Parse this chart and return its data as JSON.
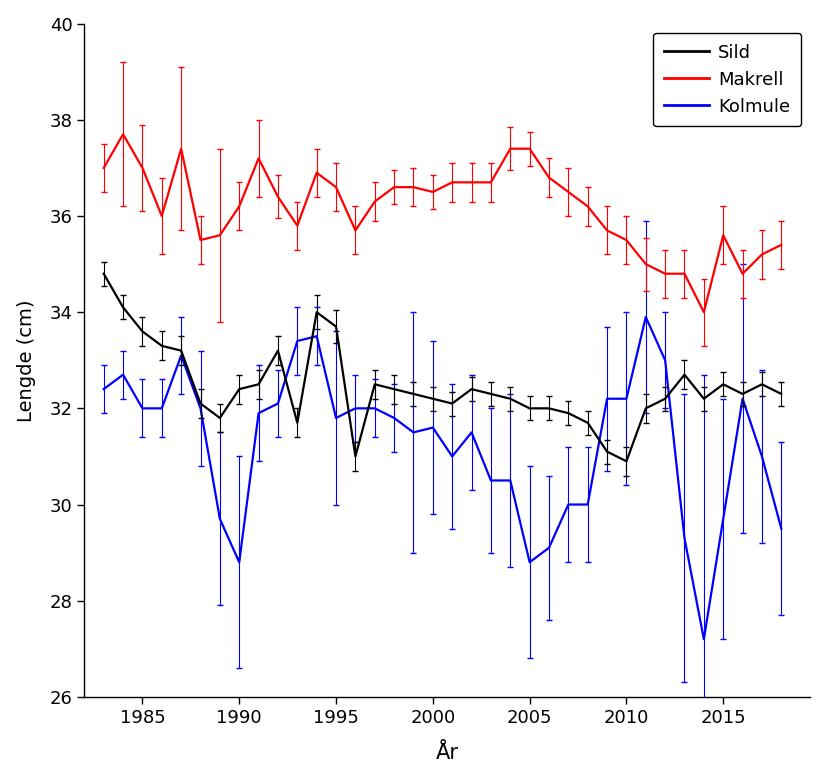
{
  "xlabel": "År",
  "ylabel": "Lengde (cm)",
  "ylim": [
    26,
    40
  ],
  "yticks": [
    26,
    28,
    30,
    32,
    34,
    36,
    38,
    40
  ],
  "xticks": [
    1985,
    1990,
    1995,
    2000,
    2005,
    2010,
    2015
  ],
  "xlim": [
    1982.0,
    2019.5
  ],
  "legend_labels": [
    "Sild",
    "Makrell",
    "Kolmule"
  ],
  "legend_colors": [
    "black",
    "red",
    "blue"
  ],
  "sild": {
    "years": [
      1983,
      1984,
      1985,
      1986,
      1987,
      1988,
      1989,
      1990,
      1991,
      1992,
      1993,
      1994,
      1995,
      1996,
      1997,
      1998,
      1999,
      2000,
      2001,
      2002,
      2003,
      2004,
      2005,
      2006,
      2007,
      2008,
      2009,
      2010,
      2011,
      2012,
      2013,
      2014,
      2015,
      2016,
      2017,
      2018
    ],
    "values": [
      34.8,
      34.1,
      33.6,
      33.3,
      33.2,
      32.1,
      31.8,
      32.4,
      32.5,
      33.2,
      31.7,
      34.0,
      33.7,
      31.0,
      32.5,
      32.4,
      32.3,
      32.2,
      32.1,
      32.4,
      32.3,
      32.2,
      32.0,
      32.0,
      31.9,
      31.7,
      31.1,
      30.9,
      32.0,
      32.2,
      32.7,
      32.2,
      32.5,
      32.3,
      32.5,
      32.3
    ],
    "yerr": [
      0.25,
      0.25,
      0.3,
      0.3,
      0.3,
      0.3,
      0.3,
      0.3,
      0.3,
      0.3,
      0.3,
      0.35,
      0.35,
      0.3,
      0.3,
      0.3,
      0.25,
      0.25,
      0.25,
      0.25,
      0.25,
      0.25,
      0.25,
      0.25,
      0.25,
      0.25,
      0.25,
      0.3,
      0.3,
      0.25,
      0.3,
      0.25,
      0.25,
      0.25,
      0.25,
      0.25
    ],
    "color": "black"
  },
  "makrell": {
    "years": [
      1983,
      1984,
      1985,
      1986,
      1987,
      1988,
      1989,
      1990,
      1991,
      1992,
      1993,
      1994,
      1995,
      1996,
      1997,
      1998,
      1999,
      2000,
      2001,
      2002,
      2003,
      2004,
      2005,
      2006,
      2007,
      2008,
      2009,
      2010,
      2011,
      2012,
      2013,
      2014,
      2015,
      2016,
      2017,
      2018
    ],
    "values": [
      37.0,
      37.7,
      37.0,
      36.0,
      37.4,
      35.5,
      35.6,
      36.2,
      37.2,
      36.4,
      35.8,
      36.9,
      36.6,
      35.7,
      36.3,
      36.6,
      36.6,
      36.5,
      36.7,
      36.7,
      36.7,
      37.4,
      37.4,
      36.8,
      36.5,
      36.2,
      35.7,
      35.5,
      35.0,
      34.8,
      34.8,
      34.0,
      35.6,
      34.8,
      35.2,
      35.4
    ],
    "yerr": [
      0.5,
      1.5,
      0.9,
      0.8,
      1.7,
      0.5,
      1.8,
      0.5,
      0.8,
      0.45,
      0.5,
      0.5,
      0.5,
      0.5,
      0.4,
      0.35,
      0.4,
      0.35,
      0.4,
      0.4,
      0.4,
      0.45,
      0.35,
      0.4,
      0.5,
      0.4,
      0.5,
      0.5,
      0.55,
      0.5,
      0.5,
      0.7,
      0.6,
      0.5,
      0.5,
      0.5
    ],
    "color": "red"
  },
  "kolmule": {
    "years": [
      1983,
      1984,
      1985,
      1986,
      1987,
      1988,
      1989,
      1990,
      1991,
      1992,
      1993,
      1994,
      1995,
      1996,
      1997,
      1998,
      1999,
      2000,
      2001,
      2002,
      2003,
      2004,
      2005,
      2006,
      2007,
      2008,
      2009,
      2010,
      2011,
      2012,
      2013,
      2014,
      2015,
      2016,
      2017,
      2018
    ],
    "values": [
      32.4,
      32.7,
      32.0,
      32.0,
      33.1,
      32.0,
      29.7,
      28.8,
      31.9,
      32.1,
      33.4,
      33.5,
      31.8,
      32.0,
      32.0,
      31.8,
      31.5,
      31.6,
      31.0,
      31.5,
      30.5,
      30.5,
      28.8,
      29.1,
      30.0,
      30.0,
      32.2,
      32.2,
      33.9,
      33.0,
      29.3,
      27.2,
      29.7,
      32.2,
      31.0,
      29.5
    ],
    "yerr": [
      0.5,
      0.5,
      0.6,
      0.6,
      0.8,
      1.2,
      1.8,
      2.2,
      1.0,
      0.7,
      0.7,
      0.6,
      1.8,
      0.7,
      0.6,
      0.7,
      2.5,
      1.8,
      1.5,
      1.2,
      1.5,
      1.8,
      2.0,
      1.5,
      1.2,
      1.2,
      1.5,
      1.8,
      2.0,
      1.0,
      3.0,
      5.5,
      2.5,
      2.8,
      1.8,
      1.8
    ],
    "color": "blue"
  },
  "background_color": "#ffffff",
  "linewidth": 1.6,
  "capsize": 2,
  "elinewidth": 0.8
}
